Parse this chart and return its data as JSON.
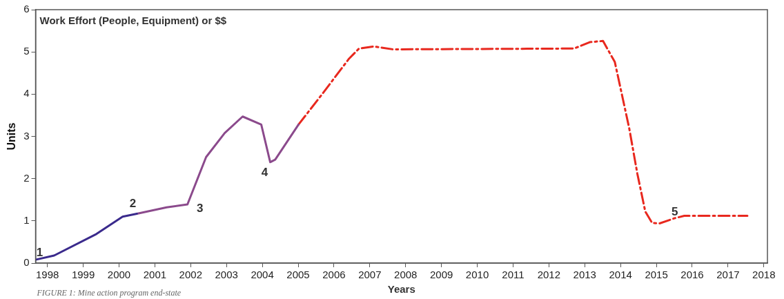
{
  "chart_data": {
    "type": "line",
    "title": "Work Effort (People, Equipment) or $$",
    "xlabel": "Years",
    "ylabel": "Units",
    "xlim": [
      1997.67,
      2018.1
    ],
    "xticks": [
      1998,
      1999,
      2000,
      2001,
      2002,
      2003,
      2004,
      2005,
      2006,
      2007,
      2008,
      2009,
      2010,
      2011,
      2012,
      2013,
      2014,
      2015,
      2016,
      2017,
      2018
    ],
    "ylim": [
      0,
      6
    ],
    "yticks": [
      0,
      1,
      2,
      3,
      4,
      5,
      6
    ],
    "grid": false,
    "legend": false,
    "marker": "none",
    "series": [
      {
        "color": "#3a2a8c",
        "line_style": "solid",
        "x": [
          1997.67,
          1998.19,
          1999.37,
          2000.1,
          2000.5
        ],
        "values": [
          0.08,
          0.18,
          0.69,
          1.1,
          1.17
        ]
      },
      {
        "color": "#8b4a8c",
        "line_style": "solid",
        "x": [
          2000.5,
          2001.33,
          2001.91,
          2002.43,
          2002.95,
          2003.45,
          2003.97,
          2004.22,
          2004.36,
          2005.01
        ],
        "values": [
          1.17,
          1.32,
          1.39,
          2.51,
          3.08,
          3.47,
          3.28,
          2.39,
          2.45,
          3.28
        ]
      },
      {
        "color": "#e8281e",
        "line_style": "dashed",
        "x": [
          2005.01,
          2005.67,
          2006.42,
          2006.7,
          2007.11,
          2007.65,
          2012.7,
          2013.14,
          2013.51,
          2013.84,
          2014.24,
          2014.47,
          2014.69,
          2014.88,
          2015.09,
          2015.5,
          2015.78,
          2017.54
        ],
        "values": [
          3.28,
          4.0,
          4.84,
          5.08,
          5.13,
          5.06,
          5.08,
          5.23,
          5.26,
          4.76,
          3.2,
          2.11,
          1.22,
          0.95,
          0.94,
          1.06,
          1.12,
          1.12
        ]
      }
    ],
    "annotations": [
      {
        "text": "1",
        "x": 1997.67,
        "y": 0.08
      },
      {
        "text": "2",
        "x": 2000.5,
        "y": 1.17
      },
      {
        "text": "3",
        "x": 2001.91,
        "y": 1.39
      },
      {
        "text": "4",
        "x": 2004.22,
        "y": 2.39
      },
      {
        "text": "5",
        "x": 2015.09,
        "y": 0.94
      },
      "FIGURE 1: Mine action program end-state"
    ]
  }
}
